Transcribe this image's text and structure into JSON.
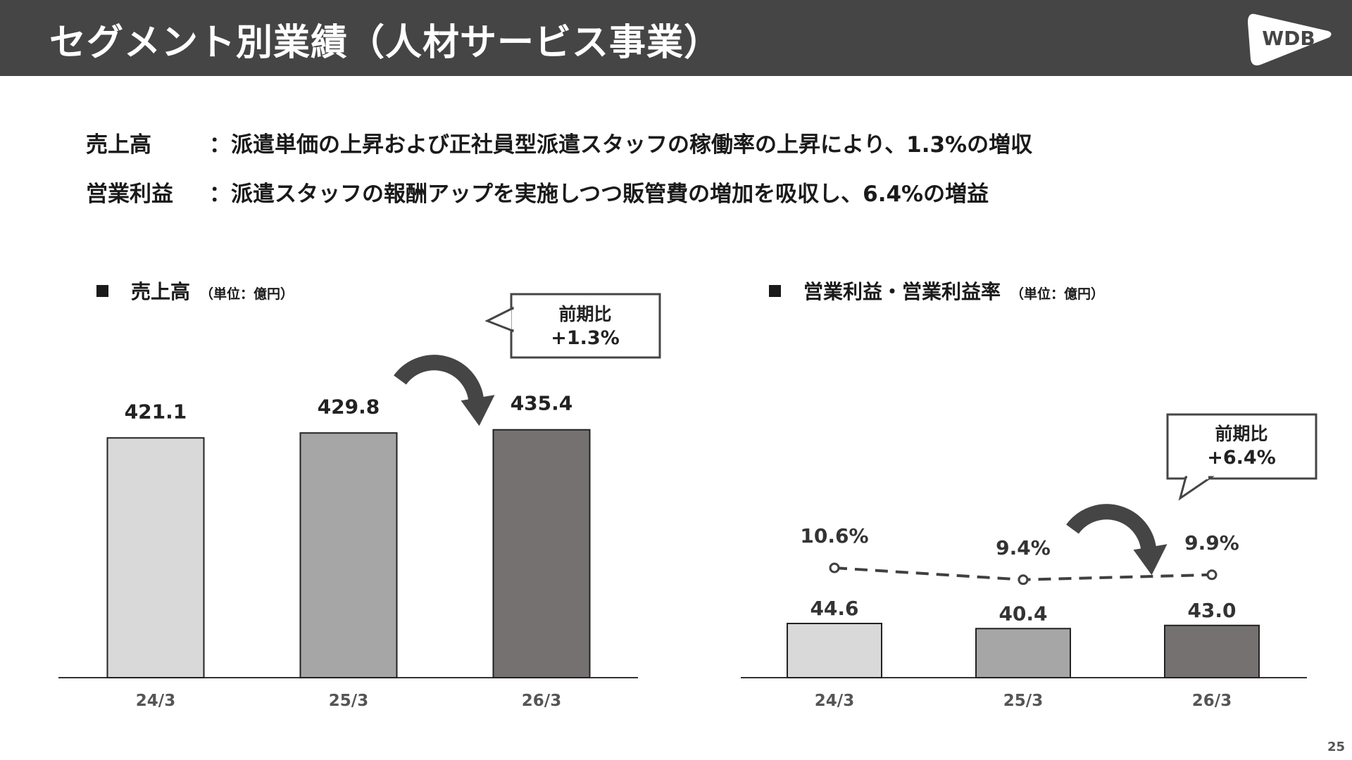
{
  "header": {
    "title": "セグメント別業績（人材サービス事業）",
    "logo_text": "WDB"
  },
  "summary": [
    {
      "label": "売上高",
      "text": "：派遣単価の上昇および正社員型派遣スタッフの稼働率の上昇により、1.3%の増収"
    },
    {
      "label": "営業利益",
      "text": "：派遣スタッフの報酬アップを実施しつつ販管費の増加を吸収し、6.4%の増益"
    }
  ],
  "left_panel": {
    "title": "売上高",
    "unit": "（単位：億円）"
  },
  "right_panel": {
    "title": "営業利益・営業利益率",
    "unit": "（単位：億円）"
  },
  "chart_data": [
    {
      "type": "bar",
      "categories": [
        "24/3",
        "25/3",
        "26/3"
      ],
      "values": [
        421.1,
        429.8,
        435.4
      ],
      "value_labels": [
        "421.1",
        "429.8",
        "435.4"
      ],
      "bar_colors": [
        "#d9d9d9",
        "#a6a6a6",
        "#767171"
      ],
      "callout": [
        "前期比",
        "+1.3%"
      ]
    },
    {
      "type": "bar",
      "categories": [
        "24/3",
        "25/3",
        "26/3"
      ],
      "values": [
        44.6,
        40.4,
        43.0
      ],
      "value_labels": [
        "44.6",
        "40.4",
        "43.0"
      ],
      "bar_colors": [
        "#d9d9d9",
        "#a6a6a6",
        "#767171"
      ],
      "line": {
        "values": [
          10.6,
          9.4,
          9.9
        ],
        "labels": [
          "10.6%",
          "9.4%",
          "9.9%"
        ]
      },
      "callout": [
        "前期比",
        "+6.4%"
      ]
    }
  ],
  "page_number": "25"
}
